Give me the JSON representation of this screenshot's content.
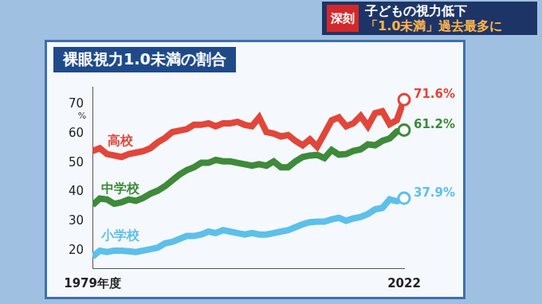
{
  "header": {
    "tag": "深刻",
    "title": "子どもの視力低下",
    "subtitle": "「1.0未満」過去最多に"
  },
  "chart_data": {
    "type": "line",
    "title": "裸眼視力1.0未満の割合",
    "y_label": "%",
    "x": [
      1979,
      1980,
      1981,
      1982,
      1983,
      1984,
      1985,
      1986,
      1987,
      1988,
      1989,
      1990,
      1991,
      1992,
      1993,
      1994,
      1995,
      1996,
      1997,
      1998,
      1999,
      2000,
      2001,
      2002,
      2003,
      2004,
      2005,
      2006,
      2007,
      2008,
      2009,
      2010,
      2011,
      2012,
      2013,
      2014,
      2015,
      2016,
      2017,
      2018,
      2019,
      2020,
      2021,
      2022
    ],
    "series": [
      {
        "name": "高校",
        "color": "#e2463a",
        "values": [
          54,
          55,
          53,
          52.5,
          52,
          53,
          53.5,
          54,
          55,
          57,
          58.5,
          60.5,
          61,
          61.5,
          63,
          63,
          63.5,
          62.5,
          63.5,
          63.5,
          64,
          63,
          62.5,
          65.5,
          60.5,
          60,
          59,
          59.5,
          57.5,
          56,
          58,
          55.5,
          60,
          64.5,
          65.5,
          62.5,
          63.5,
          66,
          62.5,
          67,
          67.6,
          63.2,
          64.6,
          71.6
        ],
        "value_labels": [
          null,
          null,
          null,
          null,
          null,
          null,
          null,
          null,
          null,
          null,
          null,
          null,
          null,
          null,
          null,
          null,
          null,
          null,
          null,
          null,
          null,
          null,
          null,
          null,
          null,
          null,
          null,
          null,
          null,
          null,
          null,
          null,
          null,
          null,
          null,
          null,
          null,
          null,
          null,
          null,
          null,
          null,
          null,
          "71.6%"
        ]
      },
      {
        "name": "中学校",
        "color": "#3e8a3a",
        "values": [
          35.5,
          37.8,
          37.5,
          36,
          36.5,
          37.5,
          37,
          38,
          39.5,
          40.5,
          42,
          44,
          46,
          47.5,
          48.5,
          50,
          50,
          51,
          50.5,
          50.5,
          50,
          49.5,
          49,
          49.5,
          49,
          50.5,
          48.5,
          48.5,
          50.5,
          52,
          52.5,
          52.7,
          51.6,
          54.4,
          52.8,
          53,
          54.1,
          54.6,
          56.3,
          56,
          57.5,
          58.3,
          60.7,
          61.2
        ],
        "value_labels": [
          null,
          null,
          null,
          null,
          null,
          null,
          null,
          null,
          null,
          null,
          null,
          null,
          null,
          null,
          null,
          null,
          null,
          null,
          null,
          null,
          null,
          null,
          null,
          null,
          null,
          null,
          null,
          null,
          null,
          null,
          null,
          null,
          null,
          null,
          null,
          null,
          null,
          null,
          null,
          null,
          null,
          null,
          null,
          "61.2%"
        ]
      },
      {
        "name": "小学校",
        "color": "#5cc0ea",
        "values": [
          17.9,
          20,
          19.5,
          20,
          20,
          19.8,
          19.5,
          20,
          20.5,
          21,
          22.5,
          23,
          24,
          25,
          25,
          25.5,
          26.5,
          26,
          27,
          26.5,
          26,
          25.5,
          26,
          25.5,
          25.5,
          26,
          26.5,
          27,
          28,
          29,
          29.7,
          29.9,
          29.9,
          30.7,
          31.2,
          30.2,
          31,
          31.5,
          32.5,
          34.1,
          34.6,
          37.5,
          36.9,
          37.9
        ],
        "value_labels": [
          null,
          null,
          null,
          null,
          null,
          null,
          null,
          null,
          null,
          null,
          null,
          null,
          null,
          null,
          null,
          null,
          null,
          null,
          null,
          null,
          null,
          null,
          null,
          null,
          null,
          null,
          null,
          null,
          null,
          null,
          null,
          null,
          null,
          null,
          null,
          null,
          null,
          null,
          null,
          null,
          null,
          null,
          null,
          "37.9%"
        ]
      }
    ],
    "xlim": [
      1979,
      2022
    ],
    "xticks": [
      {
        "value": 1979,
        "label": "1979年度"
      },
      2022
    ],
    "ylim": [
      14,
      76
    ],
    "yticks": [
      20,
      30,
      40,
      50,
      60,
      70
    ],
    "grid": false
  }
}
